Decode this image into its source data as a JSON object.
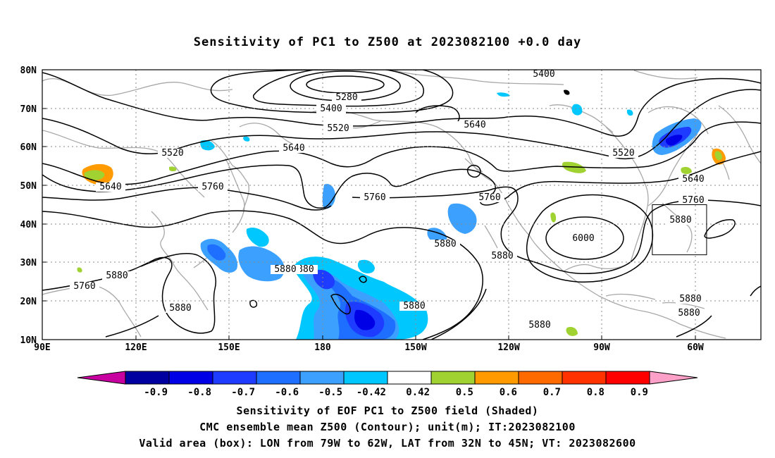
{
  "title": "Sensitivity of PC1 to Z500 at 2023082100 +0.0 day",
  "map": {
    "lon_labels": [
      "90E",
      "120E",
      "150E",
      "180",
      "150W",
      "120W",
      "90W",
      "60W"
    ],
    "lat_labels": [
      "80N",
      "70N",
      "60N",
      "50N",
      "40N",
      "30N",
      "20N",
      "10N"
    ],
    "valid_box": {
      "lon_west": -79,
      "lon_east": -62,
      "lat_south": 32,
      "lat_north": 45
    },
    "contour_labels": [
      "5280",
      "5400",
      "5400",
      "5520",
      "5520",
      "5520",
      "5640",
      "5640",
      "5640",
      "5640",
      "5760",
      "5760",
      "5760",
      "5760",
      "5760",
      "5880",
      "5880",
      "5880",
      "5880",
      "5880",
      "5880",
      "5880",
      "5880",
      "5880",
      "5880",
      "5880",
      "6000"
    ]
  },
  "colorbar": {
    "labels": [
      "-0.9",
      "-0.8",
      "-0.7",
      "-0.6",
      "-0.5",
      "-0.42",
      "0.42",
      "0.5",
      "0.6",
      "0.7",
      "0.8",
      "0.9"
    ],
    "colors": [
      "#0000a0",
      "#0000e6",
      "#1e3cff",
      "#1e6eff",
      "#3ca0ff",
      "#00c8ff",
      "#ffffff",
      "#a0d232",
      "#ff9a00",
      "#ff6a00",
      "#ff3200",
      "#ff0000"
    ],
    "low_color": "#c800a0",
    "high_color": "#ffa0c8"
  },
  "caption": {
    "line1": "Sensitivity of EOF PC1 to Z500 field (Shaded)",
    "line2": "CMC ensemble mean Z500 (Contour); unit(m); IT:2023082100",
    "line3": "Valid area (box): LON from 79W to 62W, LAT from 32N to 45N; VT: 2023082600"
  }
}
